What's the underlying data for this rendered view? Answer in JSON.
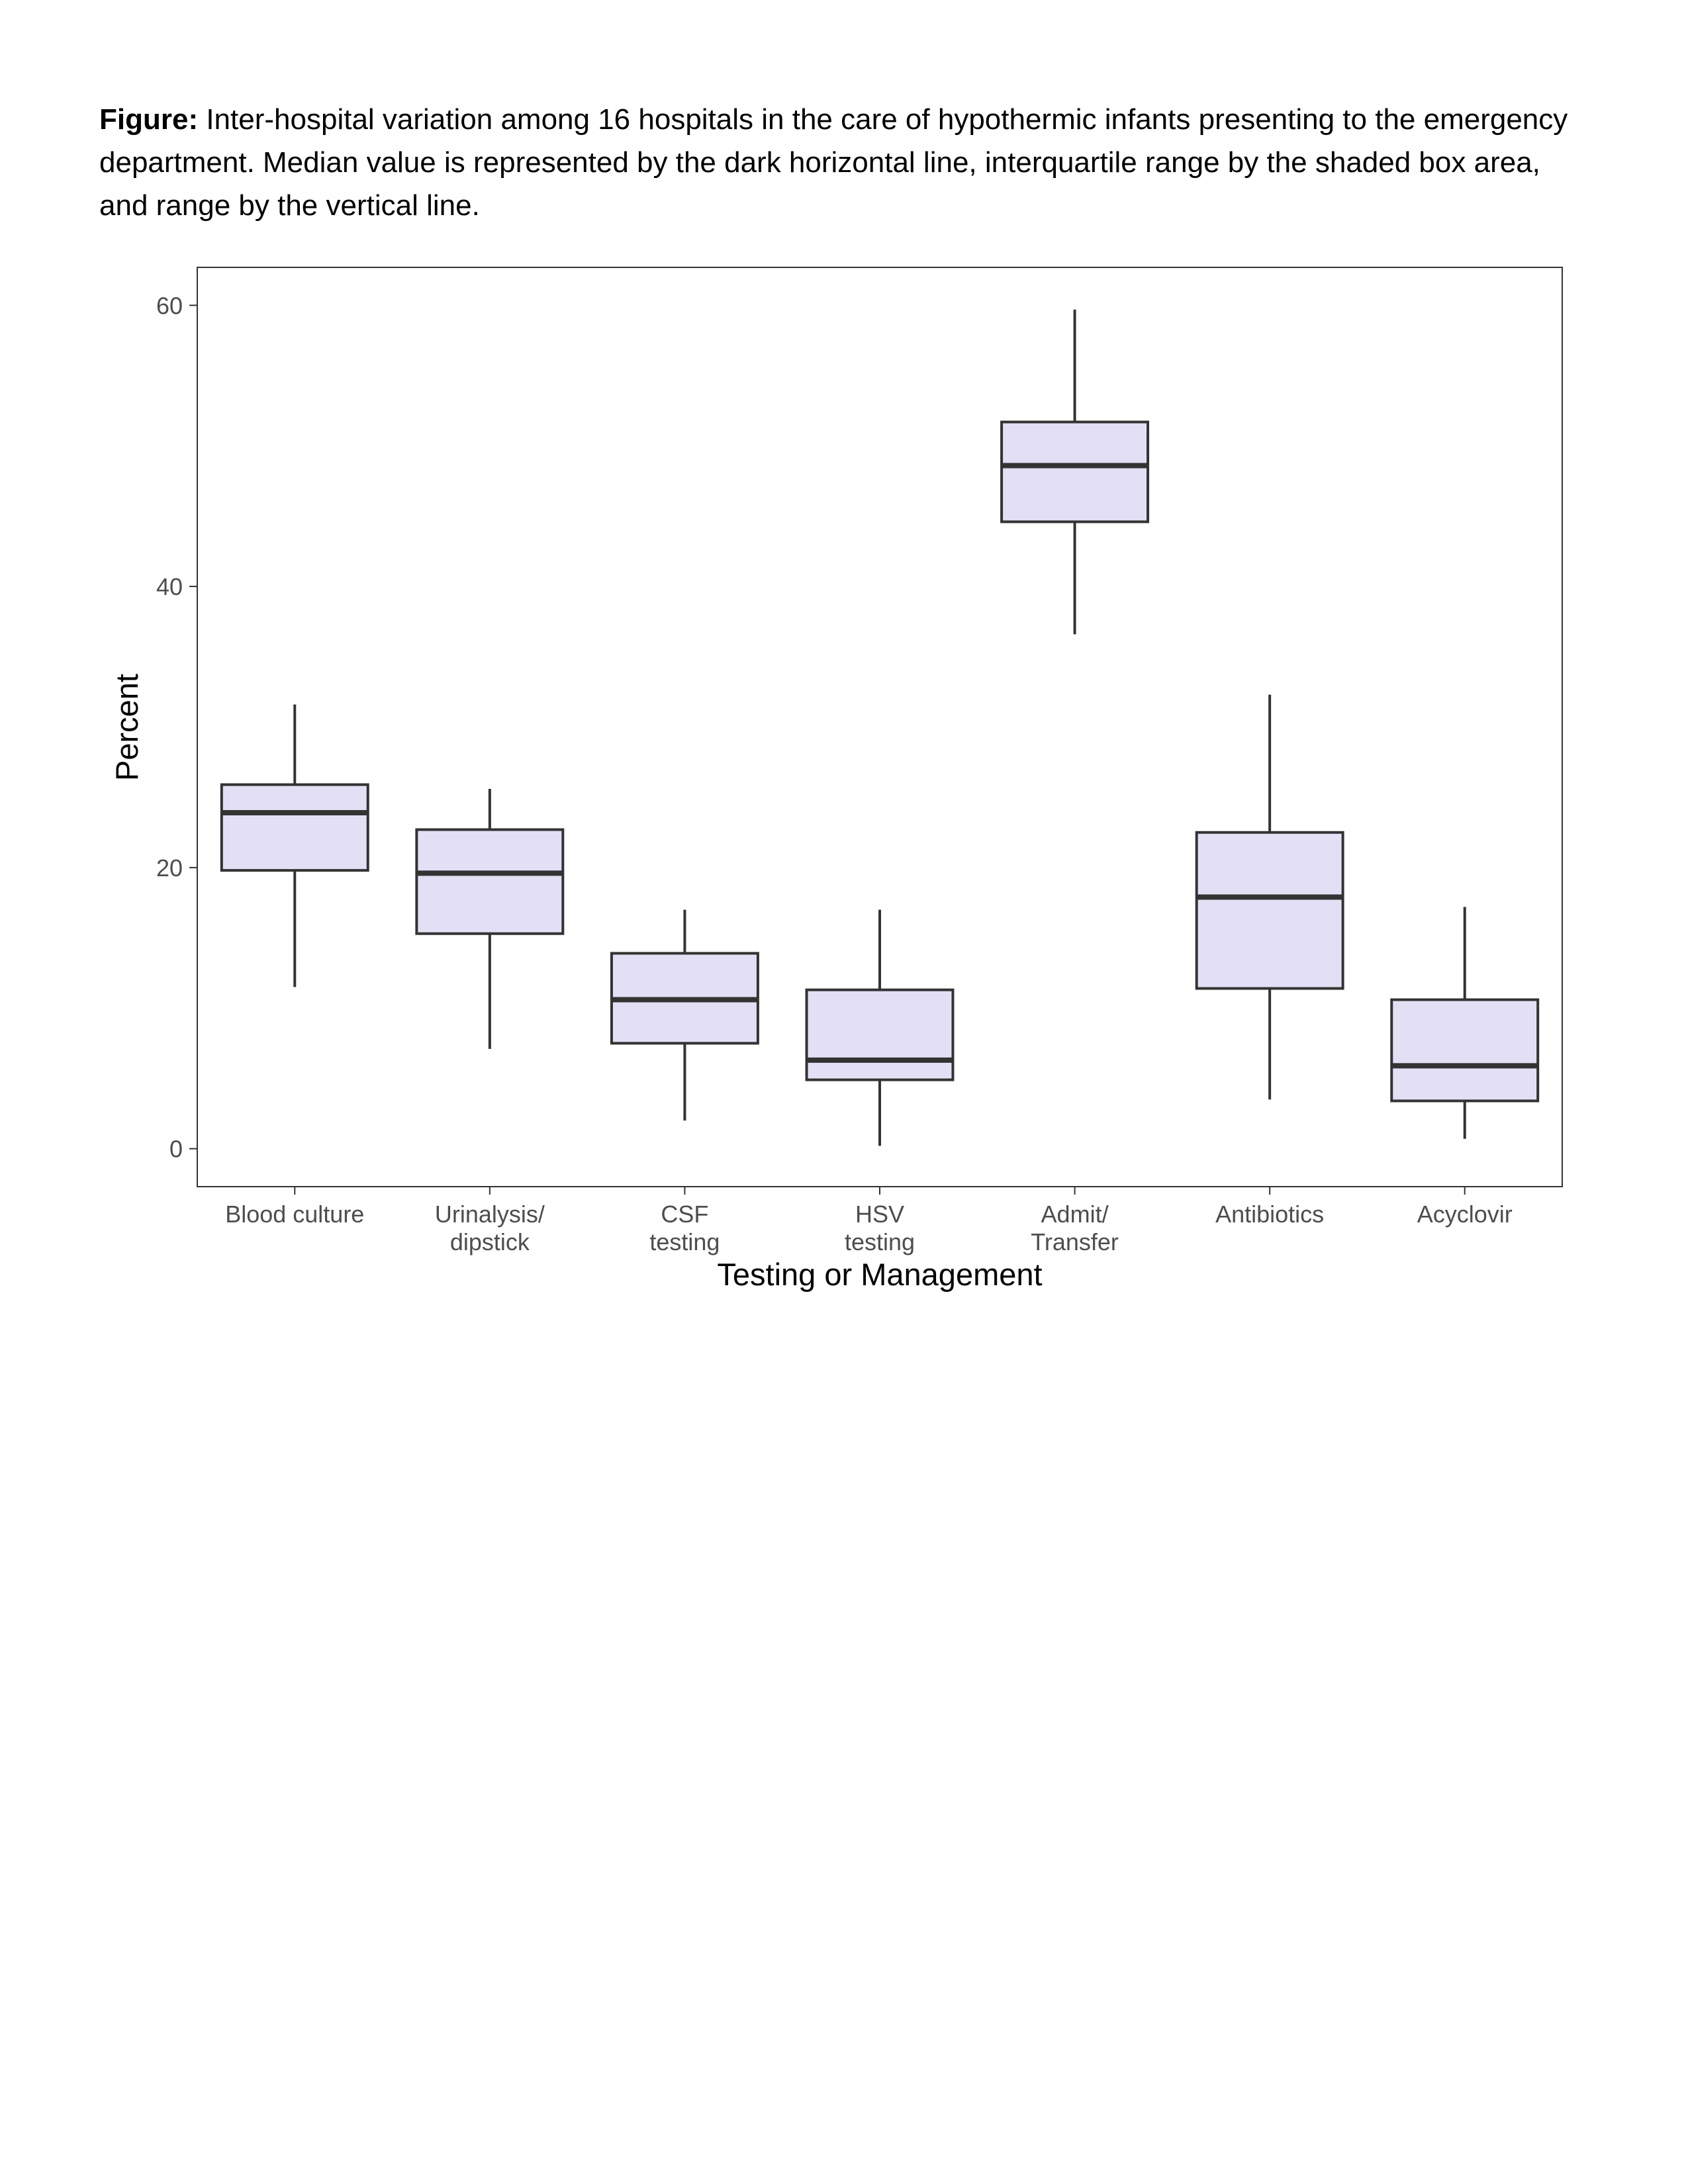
{
  "caption": {
    "label": "Figure:",
    "text": " Inter-hospital variation among 16 hospitals in the care of hypothermic infants presenting to the emergency department. Median value is represented by the dark horizontal line, interquartile range by the shaded box area, and range by the vertical line."
  },
  "chart_data": {
    "type": "boxplot",
    "title": "",
    "xlabel": "Testing or Management",
    "ylabel": "Percent",
    "ylim": [
      -2.7,
      62.7
    ],
    "yticks": [
      0,
      20,
      40,
      60
    ],
    "grid": false,
    "legend": "none",
    "box_fill": "#E3E0F6",
    "box_stroke": "#333333",
    "categories": [
      [
        "Blood culture"
      ],
      [
        "Urinalysis/",
        "dipstick"
      ],
      [
        "CSF",
        "testing"
      ],
      [
        "HSV",
        "testing"
      ],
      [
        "Admit/",
        "Transfer"
      ],
      [
        "Antibiotics"
      ],
      [
        "Acyclovir"
      ]
    ],
    "boxes": [
      {
        "min": 11.5,
        "q1": 19.8,
        "median": 23.9,
        "q3": 25.9,
        "max": 31.6
      },
      {
        "min": 7.1,
        "q1": 15.3,
        "median": 19.6,
        "q3": 22.7,
        "max": 25.6
      },
      {
        "min": 2.0,
        "q1": 7.5,
        "median": 10.6,
        "q3": 13.9,
        "max": 17.0
      },
      {
        "min": 0.2,
        "q1": 4.9,
        "median": 6.3,
        "q3": 11.3,
        "max": 17.0
      },
      {
        "min": 36.6,
        "q1": 44.6,
        "median": 48.6,
        "q3": 51.7,
        "max": 59.7
      },
      {
        "min": 3.5,
        "q1": 11.4,
        "median": 17.9,
        "q3": 22.5,
        "max": 32.3
      },
      {
        "min": 0.7,
        "q1": 3.4,
        "median": 5.9,
        "q3": 10.6,
        "max": 17.2
      }
    ]
  }
}
